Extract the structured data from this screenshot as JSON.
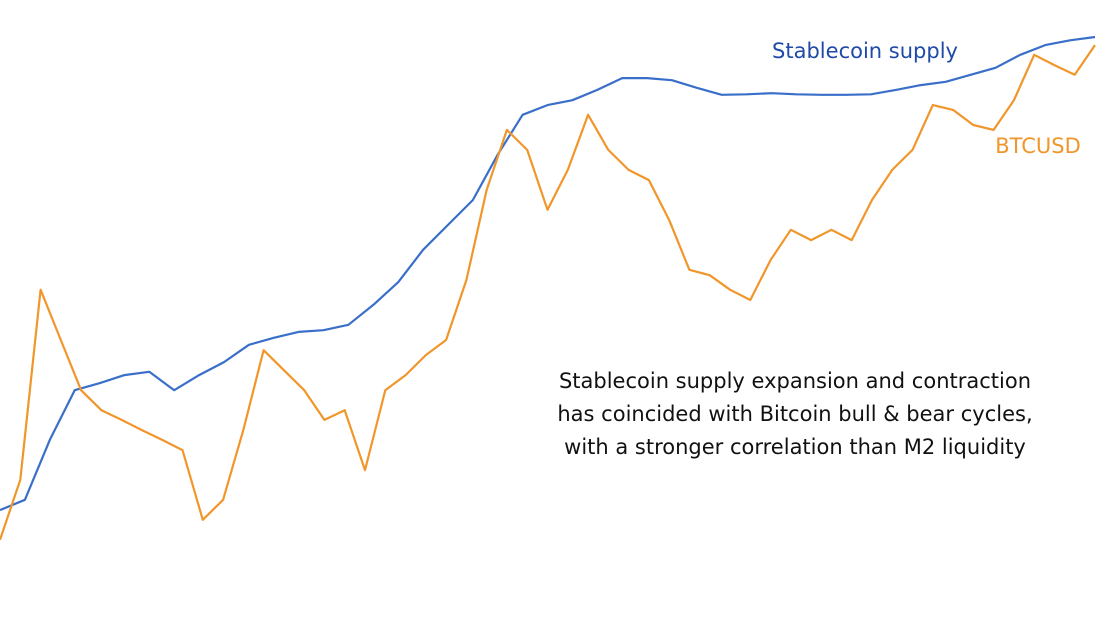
{
  "chart_data": {
    "type": "line",
    "ylim": [
      0,
      100
    ],
    "series": [
      {
        "name": "Stablecoin supply",
        "color": "#3a6fc9",
        "label_color": "#1f4aa8",
        "values": [
          11.1,
          13.0,
          24.1,
          33.3,
          34.6,
          36.1,
          36.7,
          33.3,
          36.1,
          38.5,
          41.7,
          43.0,
          44.1,
          44.4,
          45.4,
          49.1,
          53.3,
          59.3,
          63.9,
          68.5,
          76.9,
          84.3,
          86.1,
          87.0,
          88.9,
          91.1,
          91.1,
          90.7,
          89.3,
          88.0,
          88.1,
          88.3,
          88.1,
          88.0,
          88.0,
          88.1,
          88.9,
          89.8,
          90.4,
          91.7,
          93.0,
          95.4,
          97.2,
          98.1,
          98.7
        ]
      },
      {
        "name": "BTCUSD",
        "color": "#f0962a",
        "label_color": "#f0962a",
        "values": [
          5.6,
          16.7,
          51.9,
          42.6,
          33.3,
          29.6,
          27.8,
          25.9,
          24.1,
          22.2,
          9.3,
          13.0,
          25.9,
          40.7,
          37.0,
          33.3,
          27.8,
          29.6,
          18.5,
          33.3,
          36.1,
          39.8,
          42.6,
          53.7,
          70.4,
          81.5,
          77.8,
          66.7,
          74.1,
          84.3,
          77.8,
          74.1,
          72.2,
          64.8,
          55.6,
          54.6,
          51.9,
          50.0,
          57.4,
          63.0,
          61.1,
          63.0,
          61.1,
          68.5,
          74.1,
          77.8,
          86.1,
          85.2,
          82.4,
          81.5,
          87.0,
          95.4,
          93.5,
          91.7,
          97.2
        ]
      }
    ],
    "annotation": [
      "Stablecoin supply expansion and contraction",
      "has coincided with Bitcoin bull & bear cycles,",
      "with a stronger correlation than M2 liquidity"
    ]
  }
}
